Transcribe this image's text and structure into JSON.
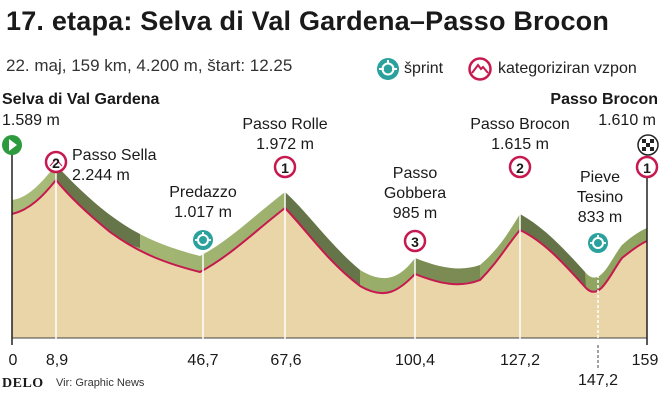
{
  "title": "17. etapa: Selva di Val Gardena–Passo Brocon",
  "subtitle": "22. maj, 159 km, 4.200 m, štart: 12.25",
  "legend": {
    "sprint_label": "šprint",
    "climb_label": "kategoriziran vzpon",
    "sprint_icon": "sprint-icon",
    "climb_icon": "mountain-icon"
  },
  "start": {
    "name": "Selva di Val Gardena",
    "elevation": "1.589 m"
  },
  "finish": {
    "name": "Passo Brocon",
    "elevation": "1.610 m"
  },
  "points": [
    {
      "name": "Passo Sella",
      "elevation": "2.244 m",
      "category": "2",
      "km": "8,9"
    },
    {
      "name": "Predazzo",
      "elevation": "1.017 m",
      "type": "sprint",
      "km": "46,7"
    },
    {
      "name": "Passo Rolle",
      "elevation": "1.972 m",
      "category": "1",
      "km": "67,6"
    },
    {
      "name_line1": "Passo",
      "name_line2": "Gobbera",
      "elevation": "985 m",
      "category": "3",
      "km": "100,4"
    },
    {
      "name": "Passo Brocon",
      "elevation": "1.615 m",
      "category": "2",
      "km": "127,2"
    },
    {
      "name_line1": "Pieve",
      "name_line2": "Tesino",
      "elevation": "833 m",
      "type": "sprint",
      "km": "147,2"
    },
    {
      "category": "1",
      "km": "159"
    }
  ],
  "km_start": "0",
  "footer": {
    "brand": "DELO",
    "source": "Vir: Graphic News"
  },
  "colors": {
    "land": "#e9d5a8",
    "ridge": "#93a866",
    "ridge_dark": "#5d6a43",
    "profile_line": "#c6194f",
    "badge_ring": "#c6194f",
    "sprint": "#2aa19d",
    "start": "#2e9a3e"
  }
}
